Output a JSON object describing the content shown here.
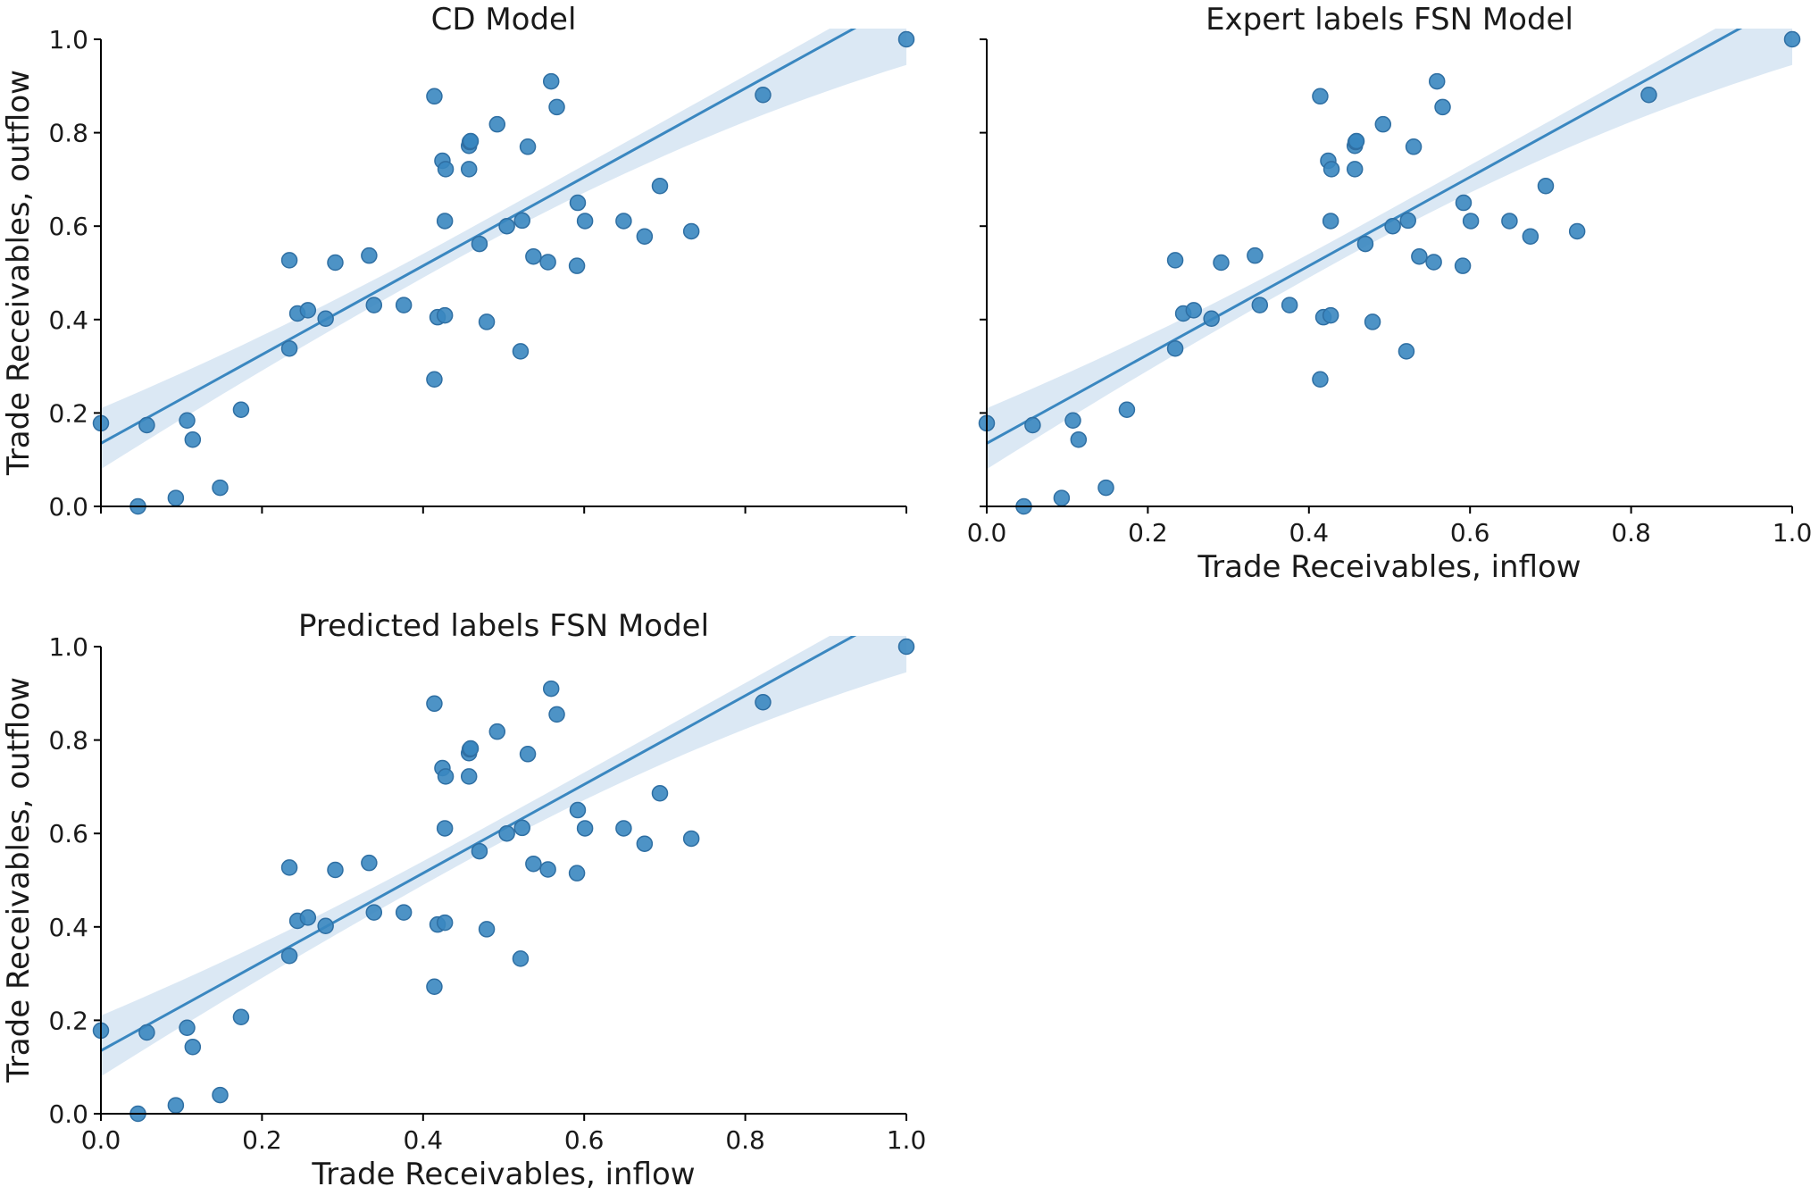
{
  "colors": {
    "point": "#3a87c0",
    "point_edge": "#2f6fa3",
    "line": "#3a87c0",
    "band": "#cfe0f0"
  },
  "chart_data": [
    {
      "type": "scatter",
      "title": "CD Model",
      "xlabel": "",
      "ylabel": "Trade Receivables, outflow",
      "xlim": [
        0,
        1
      ],
      "ylim": [
        0,
        1
      ],
      "x_tick_labels_visible": false,
      "y_tick_labels_visible": true,
      "x_ticks": [
        "0.0",
        "0.2",
        "0.4",
        "0.6",
        "0.8",
        "1.0"
      ],
      "y_ticks": [
        "0.0",
        "0.2",
        "0.4",
        "0.6",
        "0.8",
        "1.0"
      ],
      "grid": false,
      "regression": {
        "intercept": 0.135,
        "slope": 0.95,
        "ci_low": [
          0.065,
          0.945
        ],
        "ci_high": [
          0.235,
          1.115
        ]
      }
    },
    {
      "type": "scatter",
      "title": "Expert labels FSN Model",
      "xlabel": "Trade Receivables, inflow",
      "ylabel": "",
      "xlim": [
        0,
        1
      ],
      "ylim": [
        0,
        1
      ],
      "x_tick_labels_visible": true,
      "y_tick_labels_visible": false,
      "x_ticks": [
        "0.0",
        "0.2",
        "0.4",
        "0.6",
        "0.8",
        "1.0"
      ],
      "y_ticks": [
        "0.0",
        "0.2",
        "0.4",
        "0.6",
        "0.8",
        "1.0"
      ],
      "grid": false,
      "regression": {
        "intercept": 0.135,
        "slope": 0.95,
        "ci_low": [
          0.065,
          0.945
        ],
        "ci_high": [
          0.235,
          1.115
        ]
      }
    },
    {
      "type": "scatter",
      "title": "Predicted labels FSN Model",
      "xlabel": "Trade Receivables, inflow",
      "ylabel": "Trade Receivables, outflow",
      "xlim": [
        0,
        1
      ],
      "ylim": [
        0,
        1
      ],
      "x_tick_labels_visible": true,
      "y_tick_labels_visible": true,
      "x_ticks": [
        "0.0",
        "0.2",
        "0.4",
        "0.6",
        "0.8",
        "1.0"
      ],
      "y_ticks": [
        "0.0",
        "0.2",
        "0.4",
        "0.6",
        "0.8",
        "1.0"
      ],
      "grid": false,
      "regression": {
        "intercept": 0.135,
        "slope": 0.95,
        "ci_low": [
          0.065,
          0.945
        ],
        "ci_high": [
          0.235,
          1.115
        ]
      }
    }
  ],
  "shared_points": [
    [
      0.0,
      0.178
    ],
    [
      0.046,
      0.0
    ],
    [
      0.057,
      0.174
    ],
    [
      0.093,
      0.018
    ],
    [
      0.107,
      0.184
    ],
    [
      0.114,
      0.143
    ],
    [
      0.148,
      0.04
    ],
    [
      0.174,
      0.207
    ],
    [
      0.234,
      0.338
    ],
    [
      0.234,
      0.527
    ],
    [
      0.244,
      0.413
    ],
    [
      0.257,
      0.42
    ],
    [
      0.279,
      0.402
    ],
    [
      0.291,
      0.522
    ],
    [
      0.333,
      0.537
    ],
    [
      0.339,
      0.431
    ],
    [
      0.376,
      0.431
    ],
    [
      0.414,
      0.272
    ],
    [
      0.414,
      0.878
    ],
    [
      0.418,
      0.405
    ],
    [
      0.424,
      0.74
    ],
    [
      0.427,
      0.409
    ],
    [
      0.427,
      0.611
    ],
    [
      0.428,
      0.722
    ],
    [
      0.457,
      0.722
    ],
    [
      0.457,
      0.772
    ],
    [
      0.458,
      0.78
    ],
    [
      0.459,
      0.782
    ],
    [
      0.47,
      0.562
    ],
    [
      0.479,
      0.395
    ],
    [
      0.492,
      0.818
    ],
    [
      0.504,
      0.6
    ],
    [
      0.521,
      0.332
    ],
    [
      0.523,
      0.612
    ],
    [
      0.53,
      0.77
    ],
    [
      0.537,
      0.535
    ],
    [
      0.555,
      0.523
    ],
    [
      0.559,
      0.91
    ],
    [
      0.566,
      0.855
    ],
    [
      0.591,
      0.515
    ],
    [
      0.592,
      0.65
    ],
    [
      0.601,
      0.611
    ],
    [
      0.649,
      0.611
    ],
    [
      0.675,
      0.578
    ],
    [
      0.694,
      0.686
    ],
    [
      0.733,
      0.589
    ],
    [
      0.822,
      0.881
    ],
    [
      1.0,
      1.0
    ]
  ]
}
